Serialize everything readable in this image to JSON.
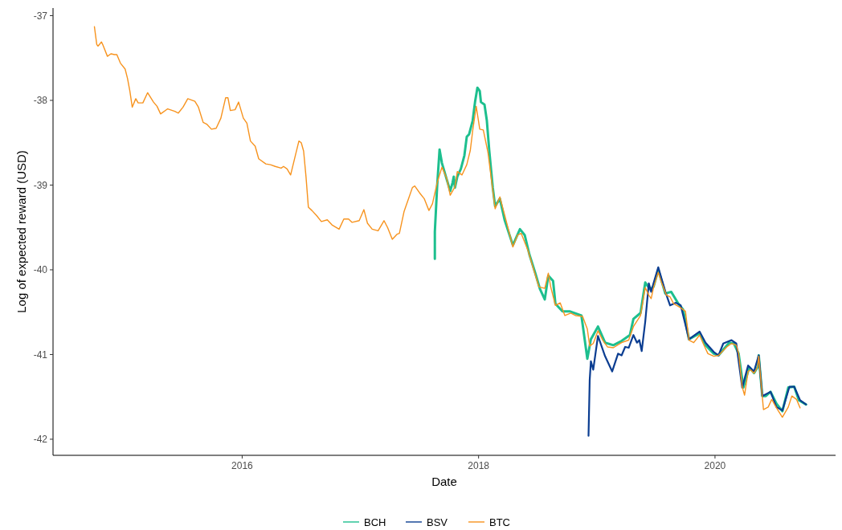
{
  "chart_data": {
    "type": "line",
    "xlabel": "Date",
    "ylabel": "Log of expected reward (USD)",
    "xlim": [
      2014.4,
      2021.02
    ],
    "ylim": [
      -42.19,
      -36.91
    ],
    "xticks": [
      2016,
      2018,
      2020
    ],
    "yticks": [
      -42,
      -41,
      -40,
      -39,
      -38,
      -37
    ],
    "grid": false,
    "legend": "bottom",
    "line_style": "solid",
    "marker": "none",
    "series": [
      {
        "name": "BCH",
        "color": "#1dbf8e",
        "x": [
          2017.63,
          2017.63,
          2017.65,
          2017.67,
          2017.69,
          2017.73,
          2017.76,
          2017.78,
          2017.79,
          2017.8,
          2017.82,
          2017.85,
          2017.88,
          2017.9,
          2017.92,
          2017.95,
          2017.97,
          2017.99,
          2018.01,
          2018.02,
          2018.05,
          2018.07,
          2018.09,
          2018.12,
          2018.14,
          2018.18,
          2018.22,
          2018.29,
          2018.35,
          2018.39,
          2018.43,
          2018.48,
          2018.52,
          2018.56,
          2018.59,
          2018.63,
          2018.65,
          2018.71,
          2018.77,
          2018.87,
          2018.92,
          2018.95,
          2019.01,
          2019.07,
          2019.14,
          2019.21,
          2019.28,
          2019.31,
          2019.37,
          2019.41,
          2019.45,
          2019.48,
          2019.52,
          2019.58,
          2019.63,
          2019.69,
          2019.73,
          2019.78,
          2019.87,
          2019.92,
          2019.99,
          2020.03,
          2020.12,
          2020.16,
          2020.2,
          2020.24,
          2020.29,
          2020.33,
          2020.36,
          2020.37,
          2020.4,
          2020.43,
          2020.47,
          2020.52,
          2020.57,
          2020.62,
          2020.67,
          2020.71,
          2020.77
        ],
        "values": [
          -39.87,
          -39.55,
          -39.0,
          -38.58,
          -38.74,
          -38.93,
          -39.07,
          -38.97,
          -38.9,
          -39.03,
          -38.9,
          -38.81,
          -38.65,
          -38.43,
          -38.4,
          -38.24,
          -38.02,
          -37.85,
          -37.89,
          -38.02,
          -38.05,
          -38.24,
          -38.59,
          -39.03,
          -39.25,
          -39.16,
          -39.41,
          -39.71,
          -39.52,
          -39.59,
          -39.82,
          -40.04,
          -40.23,
          -40.35,
          -40.07,
          -40.13,
          -40.4,
          -40.49,
          -40.49,
          -40.54,
          -41.05,
          -40.82,
          -40.67,
          -40.86,
          -40.89,
          -40.84,
          -40.77,
          -40.58,
          -40.51,
          -40.15,
          -40.23,
          -40.2,
          -40.0,
          -40.28,
          -40.26,
          -40.4,
          -40.47,
          -40.82,
          -40.75,
          -40.89,
          -40.99,
          -41.01,
          -40.86,
          -40.87,
          -40.99,
          -41.39,
          -41.15,
          -41.22,
          -41.15,
          -41.01,
          -41.49,
          -41.49,
          -41.44,
          -41.58,
          -41.67,
          -41.39,
          -41.38,
          -41.54,
          -41.59
        ]
      },
      {
        "name": "BSV",
        "color": "#0b3d91",
        "x": [
          2018.93,
          2018.94,
          2018.95,
          2018.97,
          2019.01,
          2019.07,
          2019.13,
          2019.18,
          2019.21,
          2019.24,
          2019.27,
          2019.31,
          2019.34,
          2019.36,
          2019.38,
          2019.41,
          2019.44,
          2019.46,
          2019.48,
          2019.52,
          2019.58,
          2019.62,
          2019.67,
          2019.71,
          2019.78,
          2019.87,
          2019.92,
          2019.99,
          2020.03,
          2020.07,
          2020.14,
          2020.18,
          2020.23,
          2020.28,
          2020.33,
          2020.37,
          2020.4,
          2020.47,
          2020.52,
          2020.57,
          2020.63,
          2020.67,
          2020.72,
          2020.77
        ],
        "values": [
          -41.96,
          -41.3,
          -41.08,
          -41.18,
          -40.78,
          -41.02,
          -41.2,
          -40.99,
          -41.01,
          -40.91,
          -40.92,
          -40.77,
          -40.86,
          -40.83,
          -40.96,
          -40.61,
          -40.16,
          -40.26,
          -40.16,
          -39.97,
          -40.26,
          -40.42,
          -40.39,
          -40.42,
          -40.82,
          -40.73,
          -40.86,
          -40.97,
          -41.01,
          -40.87,
          -40.83,
          -40.87,
          -41.39,
          -41.13,
          -41.2,
          -41.01,
          -41.49,
          -41.44,
          -41.62,
          -41.66,
          -41.38,
          -41.38,
          -41.54,
          -41.59
        ]
      },
      {
        "name": "BTC",
        "color": "#f7931e",
        "x": [
          2014.75,
          2014.77,
          2014.78,
          2014.81,
          2014.82,
          2014.86,
          2014.89,
          2014.92,
          2014.94,
          2014.97,
          2015.01,
          2015.03,
          2015.05,
          2015.07,
          2015.1,
          2015.12,
          2015.16,
          2015.2,
          2015.25,
          2015.28,
          2015.31,
          2015.37,
          2015.43,
          2015.46,
          2015.5,
          2015.54,
          2015.6,
          2015.63,
          2015.67,
          2015.7,
          2015.74,
          2015.78,
          2015.82,
          2015.86,
          2015.88,
          2015.9,
          2015.94,
          2015.97,
          2016.01,
          2016.04,
          2016.07,
          2016.11,
          2016.14,
          2016.2,
          2016.24,
          2016.28,
          2016.33,
          2016.35,
          2016.38,
          2016.41,
          2016.45,
          2016.48,
          2016.5,
          2016.52,
          2016.54,
          2016.56,
          2016.59,
          2016.63,
          2016.67,
          2016.72,
          2016.76,
          2016.82,
          2016.86,
          2016.9,
          2016.93,
          2016.99,
          2017.03,
          2017.06,
          2017.1,
          2017.15,
          2017.2,
          2017.23,
          2017.27,
          2017.31,
          2017.33,
          2017.37,
          2017.44,
          2017.46,
          2017.5,
          2017.54,
          2017.58,
          2017.61,
          2017.65,
          2017.69,
          2017.73,
          2017.76,
          2017.8,
          2017.82,
          2017.86,
          2017.9,
          2017.93,
          2017.95,
          2017.98,
          2018.01,
          2018.04,
          2018.08,
          2018.12,
          2018.14,
          2018.18,
          2018.22,
          2018.29,
          2018.33,
          2018.36,
          2018.42,
          2018.46,
          2018.51,
          2018.56,
          2018.59,
          2018.61,
          2018.65,
          2018.69,
          2018.73,
          2018.78,
          2018.82,
          2018.88,
          2018.92,
          2018.94,
          2018.97,
          2019.01,
          2019.05,
          2019.09,
          2019.14,
          2019.21,
          2019.27,
          2019.31,
          2019.37,
          2019.41,
          2019.44,
          2019.46,
          2019.48,
          2019.52,
          2019.55,
          2019.59,
          2019.62,
          2019.65,
          2019.7,
          2019.75,
          2019.78,
          2019.82,
          2019.87,
          2019.9,
          2019.94,
          2019.99,
          2020.03,
          2020.1,
          2020.14,
          2020.18,
          2020.2,
          2020.23,
          2020.25,
          2020.28,
          2020.3,
          2020.33,
          2020.36,
          2020.37,
          2020.39,
          2020.41,
          2020.45,
          2020.48,
          2020.52,
          2020.57,
          2020.62,
          2020.65,
          2020.69,
          2020.72
        ],
        "values": [
          -37.13,
          -37.34,
          -37.36,
          -37.31,
          -37.34,
          -37.48,
          -37.45,
          -37.46,
          -37.46,
          -37.56,
          -37.63,
          -37.74,
          -37.89,
          -38.08,
          -37.98,
          -38.03,
          -38.03,
          -37.91,
          -38.02,
          -38.07,
          -38.16,
          -38.1,
          -38.13,
          -38.15,
          -38.08,
          -37.98,
          -38.01,
          -38.08,
          -38.26,
          -38.28,
          -38.34,
          -38.33,
          -38.21,
          -37.97,
          -37.97,
          -38.12,
          -38.11,
          -38.02,
          -38.21,
          -38.27,
          -38.48,
          -38.54,
          -38.69,
          -38.75,
          -38.76,
          -38.78,
          -38.8,
          -38.78,
          -38.81,
          -38.88,
          -38.65,
          -38.48,
          -38.5,
          -38.6,
          -38.9,
          -39.26,
          -39.3,
          -39.36,
          -39.43,
          -39.41,
          -39.47,
          -39.52,
          -39.4,
          -39.4,
          -39.44,
          -39.42,
          -39.29,
          -39.45,
          -39.52,
          -39.54,
          -39.42,
          -39.5,
          -39.64,
          -39.58,
          -39.57,
          -39.31,
          -39.03,
          -39.01,
          -39.09,
          -39.16,
          -39.3,
          -39.22,
          -38.97,
          -38.79,
          -38.92,
          -39.12,
          -39.02,
          -38.84,
          -38.88,
          -38.76,
          -38.59,
          -38.36,
          -38.07,
          -38.34,
          -38.35,
          -38.62,
          -39.06,
          -39.28,
          -39.14,
          -39.35,
          -39.73,
          -39.59,
          -39.57,
          -39.78,
          -39.97,
          -40.2,
          -40.22,
          -40.04,
          -40.2,
          -40.42,
          -40.39,
          -40.54,
          -40.51,
          -40.54,
          -40.55,
          -40.7,
          -40.9,
          -40.87,
          -40.72,
          -40.83,
          -40.91,
          -40.92,
          -40.86,
          -40.83,
          -40.67,
          -40.54,
          -40.21,
          -40.3,
          -40.34,
          -40.21,
          -40.03,
          -40.16,
          -40.3,
          -40.32,
          -40.4,
          -40.44,
          -40.49,
          -40.83,
          -40.86,
          -40.77,
          -40.87,
          -40.99,
          -41.02,
          -41.01,
          -40.91,
          -40.87,
          -40.89,
          -40.99,
          -41.38,
          -41.48,
          -41.2,
          -41.18,
          -41.22,
          -41.15,
          -41.02,
          -41.34,
          -41.65,
          -41.62,
          -41.53,
          -41.63,
          -41.74,
          -41.62,
          -41.49,
          -41.53,
          -41.63
        ]
      }
    ]
  }
}
